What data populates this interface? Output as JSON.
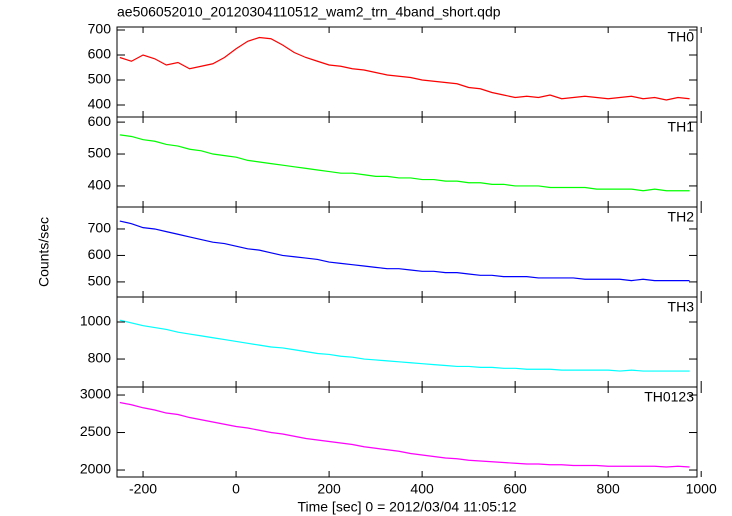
{
  "chart_data": [
    {
      "type": "line",
      "title": "ae506052010_20120304110512_wam2_trn_4band_short.qdp",
      "label": "TH0",
      "color": "#ff0000",
      "x": [
        -250,
        -225,
        -200,
        -175,
        -150,
        -125,
        -100,
        -75,
        -50,
        -25,
        0,
        25,
        50,
        75,
        100,
        125,
        150,
        175,
        200,
        225,
        250,
        275,
        300,
        325,
        350,
        375,
        400,
        425,
        450,
        475,
        500,
        525,
        550,
        575,
        600,
        625,
        650,
        675,
        700,
        725,
        750,
        775,
        800,
        825,
        850,
        875,
        900,
        925,
        950,
        975
      ],
      "values": [
        590,
        575,
        600,
        585,
        560,
        570,
        545,
        555,
        565,
        590,
        625,
        655,
        670,
        665,
        640,
        610,
        590,
        575,
        560,
        555,
        545,
        540,
        530,
        520,
        515,
        510,
        500,
        495,
        490,
        485,
        470,
        465,
        450,
        440,
        430,
        435,
        430,
        440,
        425,
        430,
        435,
        430,
        425,
        430,
        435,
        425,
        430,
        420,
        430,
        425
      ],
      "xlim": [
        -256,
        991
      ],
      "xticks": [
        -200,
        0,
        200,
        400,
        600,
        800,
        1000
      ],
      "ylim": [
        352,
        712
      ],
      "yticks": [
        400,
        500,
        600,
        700
      ]
    },
    {
      "type": "line",
      "label": "TH1",
      "color": "#00ff00",
      "x": [
        -250,
        -225,
        -200,
        -175,
        -150,
        -125,
        -100,
        -75,
        -50,
        -25,
        0,
        25,
        50,
        75,
        100,
        125,
        150,
        175,
        200,
        225,
        250,
        275,
        300,
        325,
        350,
        375,
        400,
        425,
        450,
        475,
        500,
        525,
        550,
        575,
        600,
        625,
        650,
        675,
        700,
        725,
        750,
        775,
        800,
        825,
        850,
        875,
        900,
        925,
        950,
        975
      ],
      "values": [
        560,
        555,
        545,
        540,
        530,
        525,
        515,
        510,
        500,
        495,
        490,
        480,
        475,
        470,
        465,
        460,
        455,
        450,
        445,
        440,
        440,
        435,
        430,
        430,
        425,
        425,
        420,
        420,
        415,
        415,
        410,
        410,
        405,
        405,
        400,
        400,
        400,
        395,
        395,
        395,
        395,
        390,
        390,
        390,
        390,
        385,
        390,
        385,
        385,
        385
      ],
      "xlim": [
        -256,
        991
      ],
      "xticks": [
        -200,
        0,
        200,
        400,
        600,
        800,
        1000
      ],
      "ylim": [
        334,
        616
      ],
      "yticks": [
        400,
        500,
        600
      ]
    },
    {
      "type": "line",
      "label": "TH2",
      "ylabel": "Counts/sec",
      "color": "#0000ff",
      "x": [
        -250,
        -225,
        -200,
        -175,
        -150,
        -125,
        -100,
        -75,
        -50,
        -25,
        0,
        25,
        50,
        75,
        100,
        125,
        150,
        175,
        200,
        225,
        250,
        275,
        300,
        325,
        350,
        375,
        400,
        425,
        450,
        475,
        500,
        525,
        550,
        575,
        600,
        625,
        650,
        675,
        700,
        725,
        750,
        775,
        800,
        825,
        850,
        875,
        900,
        925,
        950,
        975
      ],
      "values": [
        730,
        720,
        705,
        700,
        690,
        680,
        670,
        660,
        650,
        645,
        635,
        625,
        620,
        610,
        600,
        595,
        590,
        585,
        575,
        570,
        565,
        560,
        555,
        550,
        550,
        545,
        540,
        540,
        535,
        535,
        530,
        525,
        525,
        520,
        520,
        520,
        515,
        515,
        515,
        515,
        510,
        510,
        510,
        510,
        505,
        510,
        505,
        505,
        505,
        505
      ],
      "xlim": [
        -256,
        991
      ],
      "xticks": [
        -200,
        0,
        200,
        400,
        600,
        800,
        1000
      ],
      "ylim": [
        443,
        783
      ],
      "yticks": [
        500,
        600,
        700
      ]
    },
    {
      "type": "line",
      "label": "TH3",
      "color": "#00ffff",
      "x": [
        -250,
        -225,
        -200,
        -175,
        -150,
        -125,
        -100,
        -75,
        -50,
        -25,
        0,
        25,
        50,
        75,
        100,
        125,
        150,
        175,
        200,
        225,
        250,
        275,
        300,
        325,
        350,
        375,
        400,
        425,
        450,
        475,
        500,
        525,
        550,
        575,
        600,
        625,
        650,
        675,
        700,
        725,
        750,
        775,
        800,
        825,
        850,
        875,
        900,
        925,
        950,
        975
      ],
      "values": [
        1010,
        995,
        980,
        970,
        960,
        945,
        935,
        925,
        915,
        905,
        895,
        885,
        875,
        865,
        860,
        850,
        840,
        830,
        825,
        815,
        810,
        800,
        795,
        790,
        785,
        780,
        775,
        770,
        765,
        760,
        760,
        755,
        755,
        750,
        750,
        745,
        745,
        745,
        740,
        740,
        740,
        740,
        740,
        735,
        740,
        735,
        735,
        735,
        735,
        735
      ],
      "xlim": [
        -256,
        991
      ],
      "xticks": [
        -200,
        0,
        200,
        400,
        600,
        800,
        1000
      ],
      "ylim": [
        649,
        1135
      ],
      "yticks": [
        800,
        1000
      ]
    },
    {
      "type": "line",
      "label": "TH0123",
      "xlabel": "Time [sec] 0 = 2012/03/04 11:05:12",
      "color": "#ff00ff",
      "x": [
        -250,
        -225,
        -200,
        -175,
        -150,
        -125,
        -100,
        -75,
        -50,
        -25,
        0,
        25,
        50,
        75,
        100,
        125,
        150,
        175,
        200,
        225,
        250,
        275,
        300,
        325,
        350,
        375,
        400,
        425,
        450,
        475,
        500,
        525,
        550,
        575,
        600,
        625,
        650,
        675,
        700,
        725,
        750,
        775,
        800,
        825,
        850,
        875,
        900,
        925,
        950,
        975
      ],
      "values": [
        2900,
        2870,
        2830,
        2800,
        2760,
        2740,
        2700,
        2670,
        2640,
        2610,
        2580,
        2560,
        2530,
        2500,
        2480,
        2450,
        2420,
        2400,
        2380,
        2360,
        2340,
        2310,
        2290,
        2270,
        2250,
        2220,
        2200,
        2180,
        2160,
        2150,
        2130,
        2120,
        2110,
        2100,
        2090,
        2080,
        2080,
        2070,
        2070,
        2060,
        2060,
        2060,
        2050,
        2050,
        2050,
        2050,
        2050,
        2040,
        2050,
        2040
      ],
      "xlim": [
        -256,
        991
      ],
      "xticks": [
        -200,
        0,
        200,
        400,
        600,
        800,
        1000
      ],
      "ylim": [
        1907,
        3107
      ],
      "yticks": [
        2000,
        2500,
        3000
      ]
    }
  ]
}
